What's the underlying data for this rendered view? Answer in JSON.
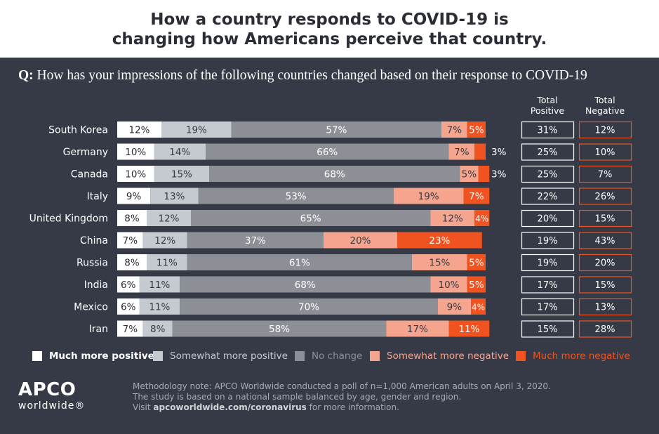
{
  "title": {
    "line1": "How a country responds to COVID-19 is",
    "line2": "changing how Americans perceive that country."
  },
  "question": {
    "prefix": "Q:",
    "text": "How has your impressions of the following countries changed based on their response to COVID-19"
  },
  "colors": {
    "background_panel": "#363a46",
    "much_more_positive": "#ffffff",
    "somewhat_more_positive": "#c4cad0",
    "no_change": "#8c9096",
    "somewhat_more_negative": "#f5a58e",
    "much_more_negative": "#f0531f",
    "total_positive_border": "#ffffff",
    "total_negative_border": "#f0531f"
  },
  "chart_data": {
    "type": "bar",
    "orientation": "horizontal",
    "stacked": true,
    "xlim": [
      0,
      100
    ],
    "categories": [
      "South Korea",
      "Germany",
      "Canada",
      "Italy",
      "United Kingdom",
      "China",
      "Russia",
      "India",
      "Mexico",
      "Iran"
    ],
    "series": [
      {
        "name": "Much more positive",
        "values": [
          12,
          10,
          10,
          9,
          8,
          7,
          8,
          6,
          6,
          7
        ]
      },
      {
        "name": "Somewhat more positive",
        "values": [
          19,
          14,
          15,
          13,
          12,
          12,
          11,
          11,
          11,
          8
        ]
      },
      {
        "name": "No change",
        "values": [
          57,
          66,
          68,
          53,
          65,
          37,
          61,
          68,
          70,
          58
        ]
      },
      {
        "name": "Somewhat more negative",
        "values": [
          7,
          7,
          5,
          19,
          12,
          20,
          15,
          10,
          9,
          17
        ]
      },
      {
        "name": "Much more negative",
        "values": [
          5,
          3,
          3,
          7,
          4,
          23,
          5,
          5,
          4,
          11
        ]
      }
    ],
    "totals": {
      "positive_label": [
        "Total",
        "Positive"
      ],
      "negative_label": [
        "Total",
        "Negative"
      ],
      "positive": [
        "31%",
        "25%",
        "25%",
        "22%",
        "20%",
        "19%",
        "19%",
        "17%",
        "17%",
        "15%"
      ],
      "negative": [
        "12%",
        "10%",
        "7%",
        "26%",
        "15%",
        "43%",
        "20%",
        "15%",
        "13%",
        "28%"
      ]
    },
    "legend_position": "bottom"
  },
  "legend": [
    {
      "label": "Much more positive",
      "color": "#ffffff",
      "text_color": "#ffffff",
      "bold": true
    },
    {
      "label": "Somewhat more positive",
      "color": "#c4cad0",
      "text_color": "#c4cad0",
      "bold": false
    },
    {
      "label": "No change",
      "color": "#8c9096",
      "text_color": "#8c9096",
      "bold": false
    },
    {
      "label": "Somewhat more negative",
      "color": "#f5a58e",
      "text_color": "#f5a58e",
      "bold": false
    },
    {
      "label": "Much more negative",
      "color": "#f0531f",
      "text_color": "#f0531f",
      "bold": false
    }
  ],
  "logo": {
    "main": "APCO",
    "sub": "worldwide®"
  },
  "methodology": {
    "line1": "Methodology note: APCO Worldwide conducted a poll of n=1,000 American adults on April 3, 2020.",
    "line2": "The study is based on a national sample balanced by age, gender and region.",
    "line3_prefix": "Visit ",
    "line3_link": "apcoworldwide.com/coronavirus",
    "line3_suffix": " for more information."
  }
}
